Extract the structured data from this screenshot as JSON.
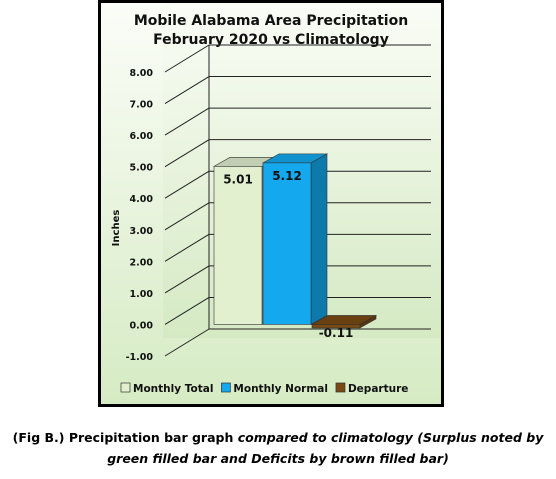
{
  "chart_data": {
    "type": "bar",
    "title": "Mobile Alabama Area Precipitation",
    "subtitle": "February 2020 vs Climatology",
    "ylabel": "Inches",
    "xlabel": "",
    "ylim": [
      -1.0,
      8.0
    ],
    "yticks": [
      "-1.00",
      "0.00",
      "1.00",
      "2.00",
      "3.00",
      "4.00",
      "5.00",
      "6.00",
      "7.00",
      "8.00"
    ],
    "series": [
      {
        "name": "Monthly Total",
        "value": 5.01,
        "label": "5.01",
        "color": "#e2f0d0"
      },
      {
        "name": "Monthly Normal",
        "value": 5.12,
        "label": "5.12",
        "color": "#14a9ee"
      },
      {
        "name": "Departure",
        "value": -0.11,
        "label": "-0.11",
        "color": "#7a4a12"
      }
    ],
    "legend_position": "bottom",
    "grid": true,
    "style": "3d"
  },
  "caption": {
    "line1_prefix": "(Fig B.) Precipitation  bar graph ",
    "line1_italic": "compared to climatology (Surplus noted by",
    "line2_italic": "green filled bar and Deficits by brown filled bar)"
  }
}
